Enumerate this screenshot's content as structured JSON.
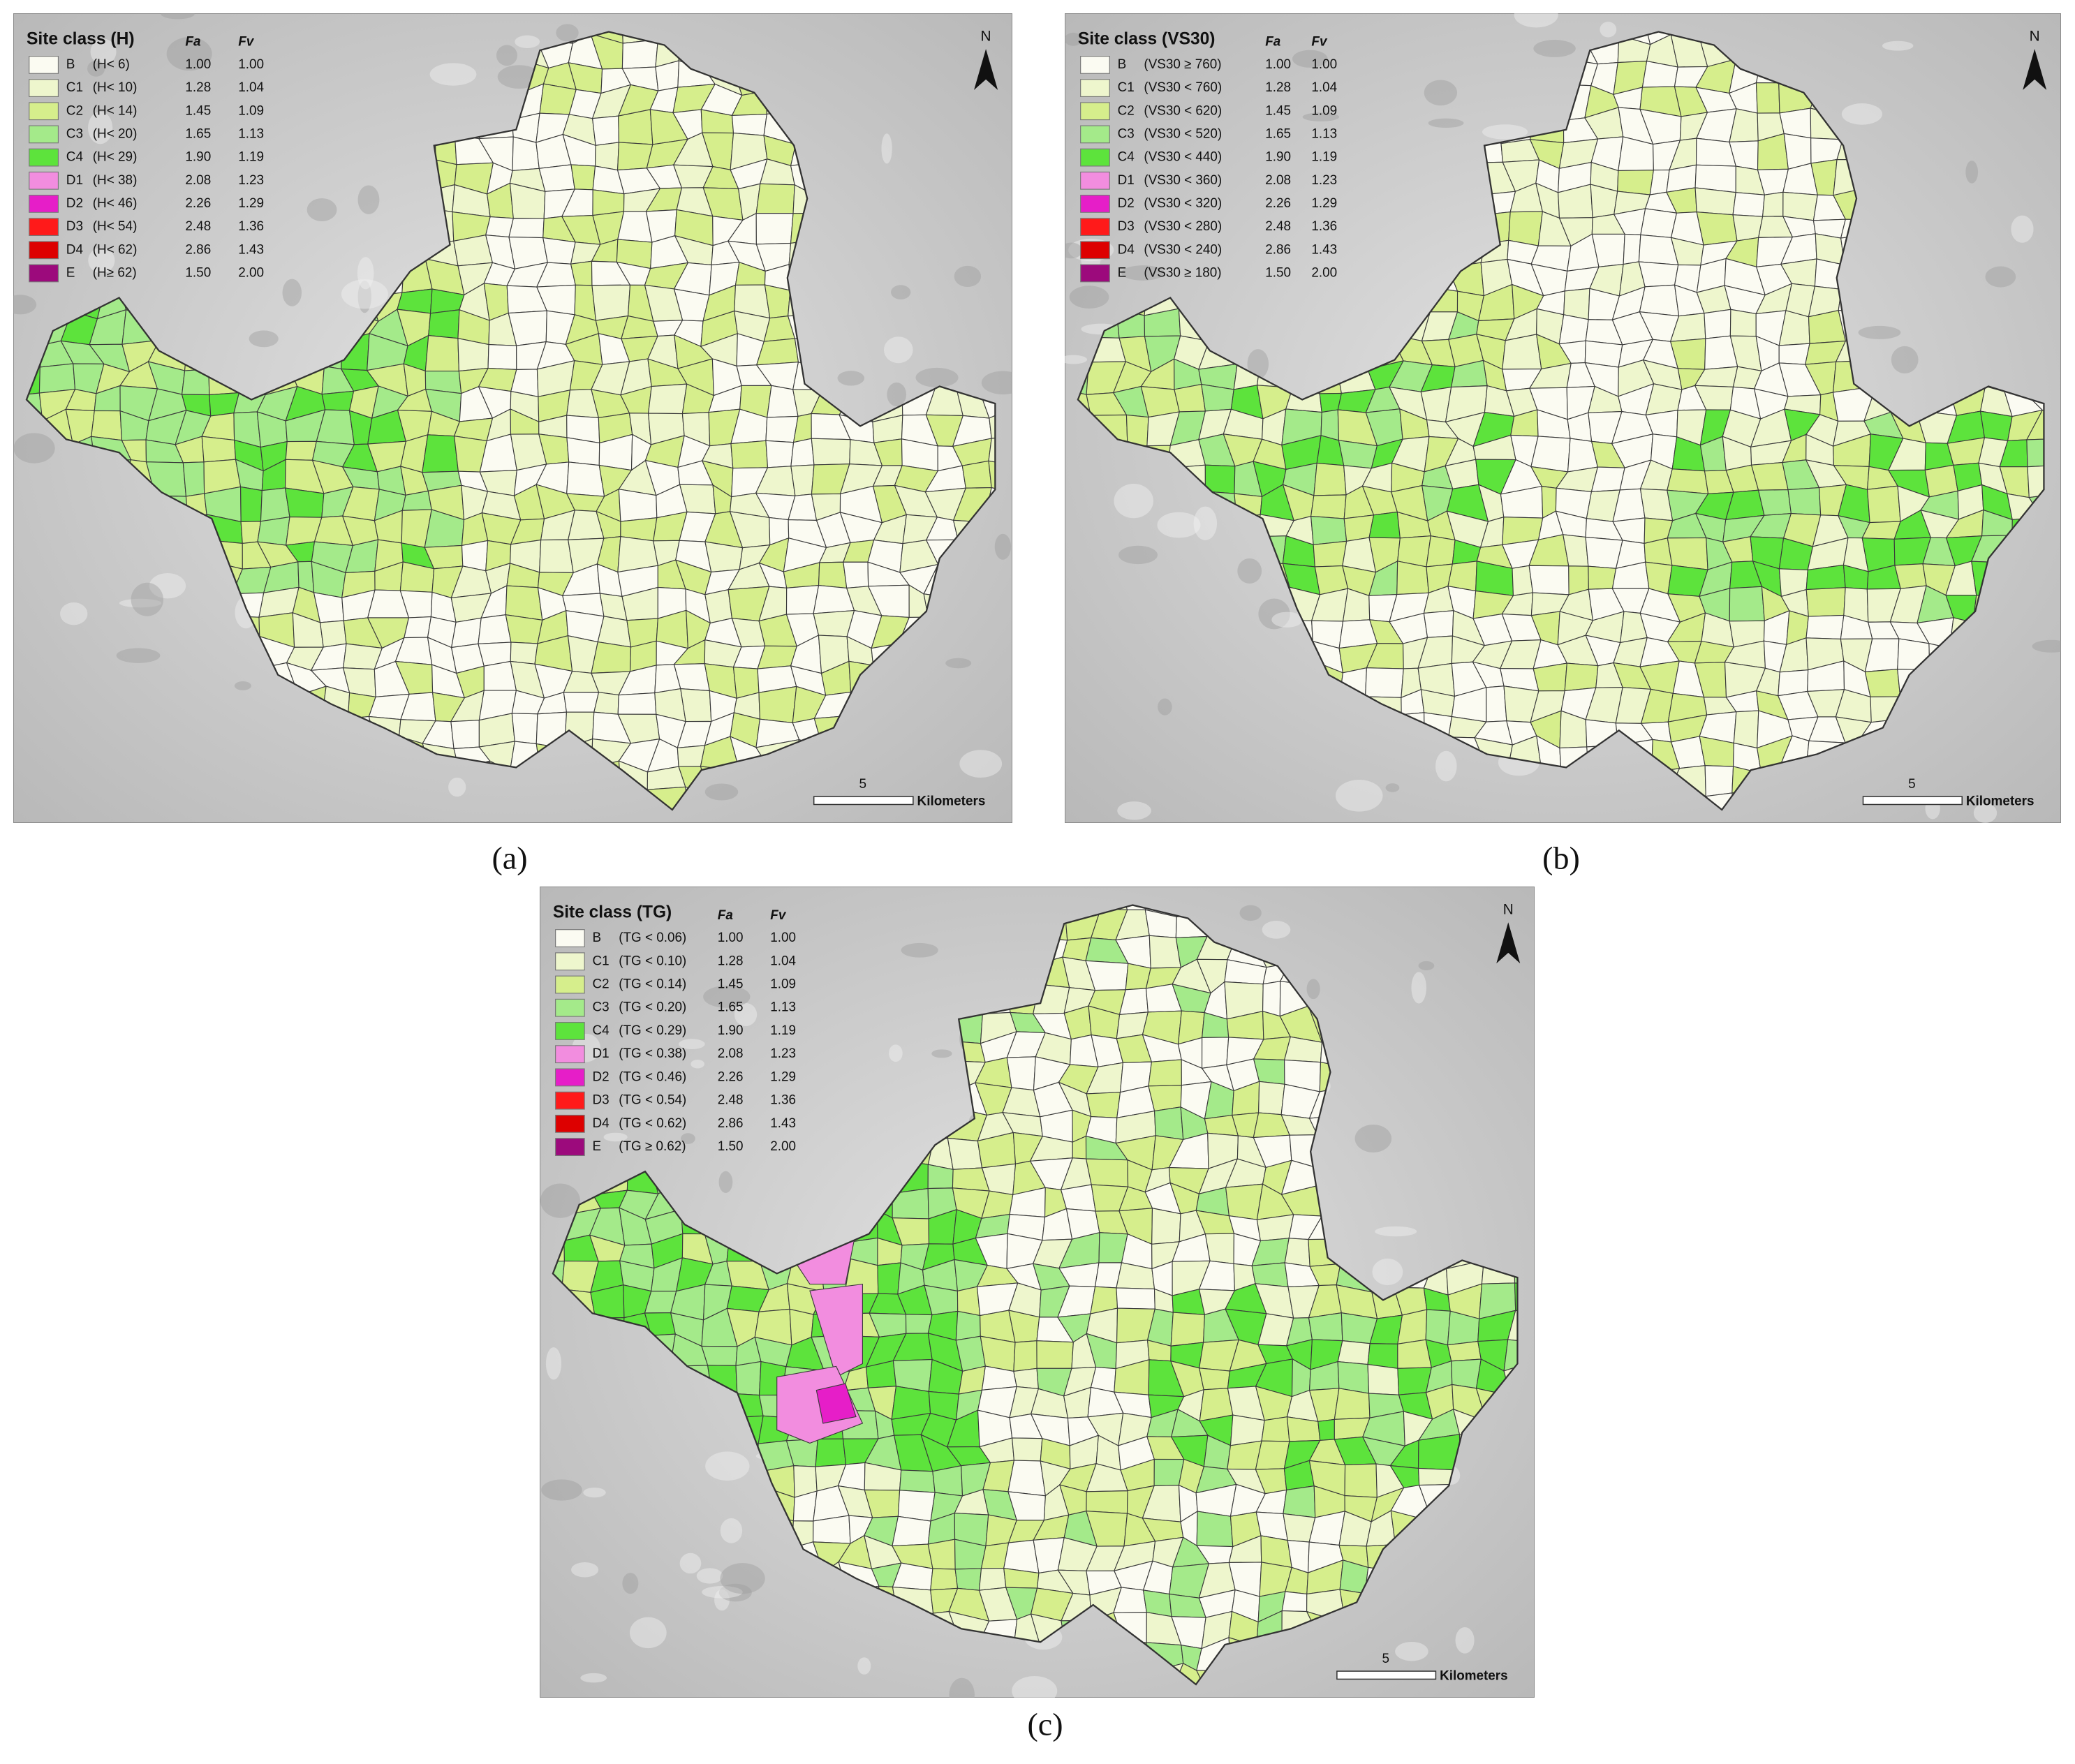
{
  "panels": [
    {
      "label": "(a)",
      "legend": {
        "title": "Site class (H)",
        "columns": [
          "Fa",
          "Fv"
        ],
        "rows": [
          {
            "class": "B",
            "condition": "(H< 6)",
            "fa": "1.00",
            "fv": "1.00",
            "color": "#fbfbf2"
          },
          {
            "class": "C1",
            "condition": "(H< 10)",
            "fa": "1.28",
            "fv": "1.04",
            "color": "#eef6cd"
          },
          {
            "class": "C2",
            "condition": "(H< 14)",
            "fa": "1.45",
            "fv": "1.09",
            "color": "#d6ee8c"
          },
          {
            "class": "C3",
            "condition": "(H< 20)",
            "fa": "1.65",
            "fv": "1.13",
            "color": "#a4ea8a"
          },
          {
            "class": "C4",
            "condition": "(H< 29)",
            "fa": "1.90",
            "fv": "1.19",
            "color": "#5de33c"
          },
          {
            "class": "D1",
            "condition": "(H< 38)",
            "fa": "2.08",
            "fv": "1.23",
            "color": "#f28ddf"
          },
          {
            "class": "D2",
            "condition": "(H< 46)",
            "fa": "2.26",
            "fv": "1.29",
            "color": "#e61ec8"
          },
          {
            "class": "D3",
            "condition": "(H< 54)",
            "fa": "2.48",
            "fv": "1.36",
            "color": "#ff1a1a"
          },
          {
            "class": "D4",
            "condition": "(H< 62)",
            "fa": "2.86",
            "fv": "1.43",
            "color": "#dd0000"
          },
          {
            "class": "E",
            "condition": "(H≥ 62)",
            "fa": "1.50",
            "fv": "2.00",
            "color": "#9c0a7c"
          }
        ]
      },
      "north": "N",
      "scale": "5",
      "scale_unit": "Kilometers"
    },
    {
      "label": "(b)",
      "legend": {
        "title": "Site class (VS30)",
        "columns": [
          "Fa",
          "Fv"
        ],
        "rows": [
          {
            "class": "B",
            "condition": "(VS30 ≥ 760)",
            "fa": "1.00",
            "fv": "1.00",
            "color": "#fbfbf2"
          },
          {
            "class": "C1",
            "condition": "(VS30 < 760)",
            "fa": "1.28",
            "fv": "1.04",
            "color": "#eef6cd"
          },
          {
            "class": "C2",
            "condition": "(VS30 < 620)",
            "fa": "1.45",
            "fv": "1.09",
            "color": "#d6ee8c"
          },
          {
            "class": "C3",
            "condition": "(VS30 < 520)",
            "fa": "1.65",
            "fv": "1.13",
            "color": "#a4ea8a"
          },
          {
            "class": "C4",
            "condition": "(VS30 < 440)",
            "fa": "1.90",
            "fv": "1.19",
            "color": "#5de33c"
          },
          {
            "class": "D1",
            "condition": "(VS30 < 360)",
            "fa": "2.08",
            "fv": "1.23",
            "color": "#f28ddf"
          },
          {
            "class": "D2",
            "condition": "(VS30 < 320)",
            "fa": "2.26",
            "fv": "1.29",
            "color": "#e61ec8"
          },
          {
            "class": "D3",
            "condition": "(VS30 < 280)",
            "fa": "2.48",
            "fv": "1.36",
            "color": "#ff1a1a"
          },
          {
            "class": "D4",
            "condition": "(VS30 < 240)",
            "fa": "2.86",
            "fv": "1.43",
            "color": "#dd0000"
          },
          {
            "class": "E",
            "condition": "(VS30 ≥ 180)",
            "fa": "1.50",
            "fv": "2.00",
            "color": "#9c0a7c"
          }
        ]
      },
      "north": "N",
      "scale": "5",
      "scale_unit": "Kilometers"
    },
    {
      "label": "(c)",
      "legend": {
        "title": "Site class (TG)",
        "columns": [
          "Fa",
          "Fv"
        ],
        "rows": [
          {
            "class": "B",
            "condition": "(TG < 0.06)",
            "fa": "1.00",
            "fv": "1.00",
            "color": "#fbfbf2"
          },
          {
            "class": "C1",
            "condition": "(TG < 0.10)",
            "fa": "1.28",
            "fv": "1.04",
            "color": "#eef6cd"
          },
          {
            "class": "C2",
            "condition": "(TG < 0.14)",
            "fa": "1.45",
            "fv": "1.09",
            "color": "#d6ee8c"
          },
          {
            "class": "C3",
            "condition": "(TG < 0.20)",
            "fa": "1.65",
            "fv": "1.13",
            "color": "#a4ea8a"
          },
          {
            "class": "C4",
            "condition": "(TG < 0.29)",
            "fa": "1.90",
            "fv": "1.19",
            "color": "#5de33c"
          },
          {
            "class": "D1",
            "condition": "(TG < 0.38)",
            "fa": "2.08",
            "fv": "1.23",
            "color": "#f28ddf"
          },
          {
            "class": "D2",
            "condition": "(TG < 0.46)",
            "fa": "2.26",
            "fv": "1.29",
            "color": "#e61ec8"
          },
          {
            "class": "D3",
            "condition": "(TG < 0.54)",
            "fa": "2.48",
            "fv": "1.36",
            "color": "#ff1a1a"
          },
          {
            "class": "D4",
            "condition": "(TG < 0.62)",
            "fa": "2.86",
            "fv": "1.43",
            "color": "#dd0000"
          },
          {
            "class": "E",
            "condition": "(TG ≥ 0.62)",
            "fa": "1.50",
            "fv": "2.00",
            "color": "#9c0a7c"
          }
        ]
      },
      "north": "N",
      "scale": "5",
      "scale_unit": "Kilometers"
    }
  ]
}
